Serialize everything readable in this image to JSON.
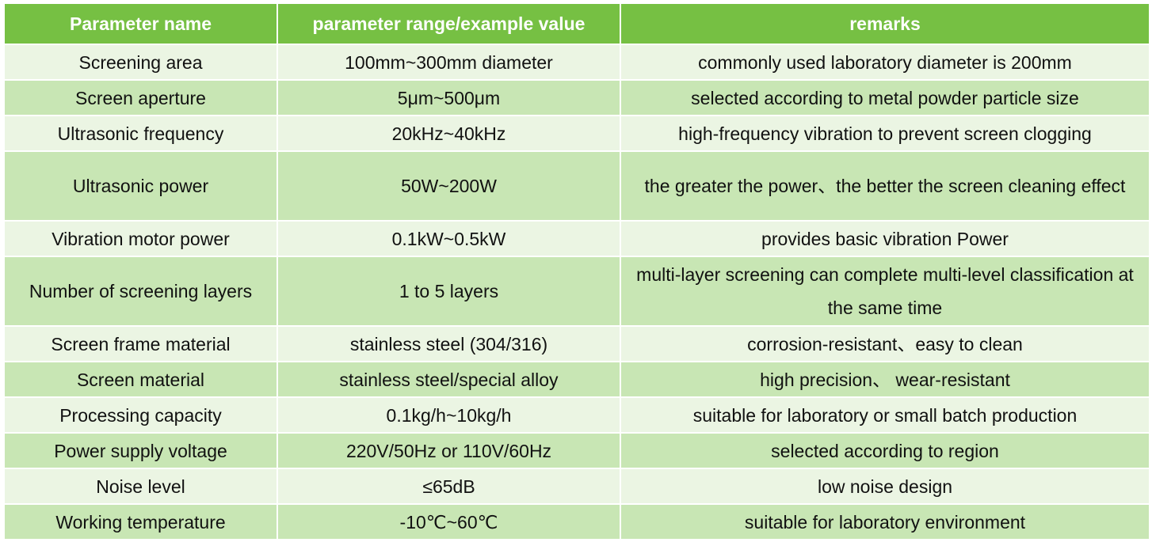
{
  "colors": {
    "header_bg": "#76c043",
    "header_text": "#ffffff",
    "row_light": "#ebf5e3",
    "row_dark": "#c8e6b4"
  },
  "table": {
    "headers": [
      "Parameter name",
      "parameter range/example value",
      "remarks"
    ],
    "rows": [
      [
        "Screening area",
        "100mm~300mm diameter",
        "commonly used laboratory diameter is 200mm"
      ],
      [
        "Screen aperture",
        "5μm~500μm",
        "selected according to metal powder particle size"
      ],
      [
        "Ultrasonic frequency",
        "20kHz~40kHz",
        "high-frequency vibration to prevent screen clogging"
      ],
      [
        "Ultrasonic power",
        "50W~200W",
        "the greater the power、the better the screen cleaning effect"
      ],
      [
        "Vibration motor power",
        "0.1kW~0.5kW",
        "provides basic vibration Power"
      ],
      [
        "Number of screening layers",
        "1 to 5 layers",
        "multi-layer screening can complete multi-level classification at the same time"
      ],
      [
        "Screen frame material",
        "stainless steel (304/316)",
        "corrosion-resistant、easy to clean"
      ],
      [
        "Screen material",
        "stainless steel/special alloy",
        "high precision、 wear-resistant"
      ],
      [
        "Processing capacity",
        "0.1kg/h~10kg/h",
        "suitable for laboratory or small batch production"
      ],
      [
        "Power supply voltage",
        "220V/50Hz or 110V/60Hz",
        "selected according to region"
      ],
      [
        "Noise level",
        "≤65dB",
        "low noise design"
      ],
      [
        "Working temperature",
        "-10℃~60℃",
        "suitable for laboratory environment"
      ]
    ]
  }
}
